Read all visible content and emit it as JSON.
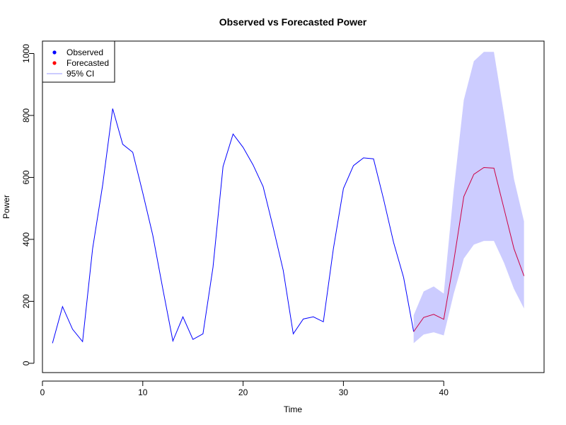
{
  "chart_data": {
    "type": "line",
    "title": "Observed vs Forecasted Power",
    "xlabel": "Time",
    "ylabel": "Power",
    "xlim": [
      0,
      50
    ],
    "ylim": [
      -30,
      1040
    ],
    "x_ticks": [
      0,
      10,
      20,
      30,
      40
    ],
    "x_tick_labels": [
      "0",
      "10",
      "20",
      "30",
      "40"
    ],
    "y_ticks": [
      0,
      200,
      400,
      600,
      800,
      1000
    ],
    "y_tick_labels": [
      "0",
      "200",
      "400",
      "600",
      "800",
      "1000"
    ],
    "grid": false,
    "legend_position": "top-left",
    "legend": [
      {
        "label": "Observed",
        "color": "#0000ff",
        "marker": "point"
      },
      {
        "label": "Forecasted",
        "color": "#ff0000",
        "marker": "point"
      },
      {
        "label": "95% CI",
        "color": "#ccccff",
        "marker": "line"
      }
    ],
    "series": [
      {
        "name": "Observed",
        "color": "#0000ff",
        "x": [
          1,
          2,
          3,
          4,
          5,
          6,
          7,
          8,
          9,
          10,
          11,
          12,
          13,
          14,
          15,
          16,
          17,
          18,
          19,
          20,
          21,
          22,
          23,
          24,
          25,
          26,
          27,
          28,
          29,
          30,
          31,
          32,
          33,
          34,
          35,
          36,
          37
        ],
        "values": [
          65,
          183,
          110,
          70,
          370,
          575,
          822,
          707,
          681,
          550,
          413,
          240,
          72,
          150,
          77,
          95,
          310,
          635,
          740,
          697,
          640,
          570,
          438,
          300,
          95,
          143,
          150,
          134,
          370,
          564,
          638,
          663,
          660,
          530,
          390,
          277,
          102
        ]
      },
      {
        "name": "Forecasted",
        "color": "#cc0044",
        "x": [
          37,
          38,
          39,
          40,
          41,
          42,
          43,
          44,
          45,
          46,
          47,
          48
        ],
        "values": [
          102,
          148,
          158,
          142,
          330,
          538,
          610,
          632,
          630,
          500,
          370,
          282
        ]
      }
    ],
    "ci_band": {
      "name": "95% CI",
      "color": "#ccccff",
      "x": [
        37,
        38,
        39,
        40,
        41,
        42,
        43,
        44,
        45,
        46,
        47,
        48
      ],
      "lower": [
        65,
        93,
        100,
        90,
        225,
        338,
        383,
        395,
        395,
        325,
        240,
        177
      ],
      "upper": [
        155,
        232,
        248,
        225,
        560,
        850,
        975,
        1005,
        1005,
        805,
        595,
        458
      ]
    }
  }
}
